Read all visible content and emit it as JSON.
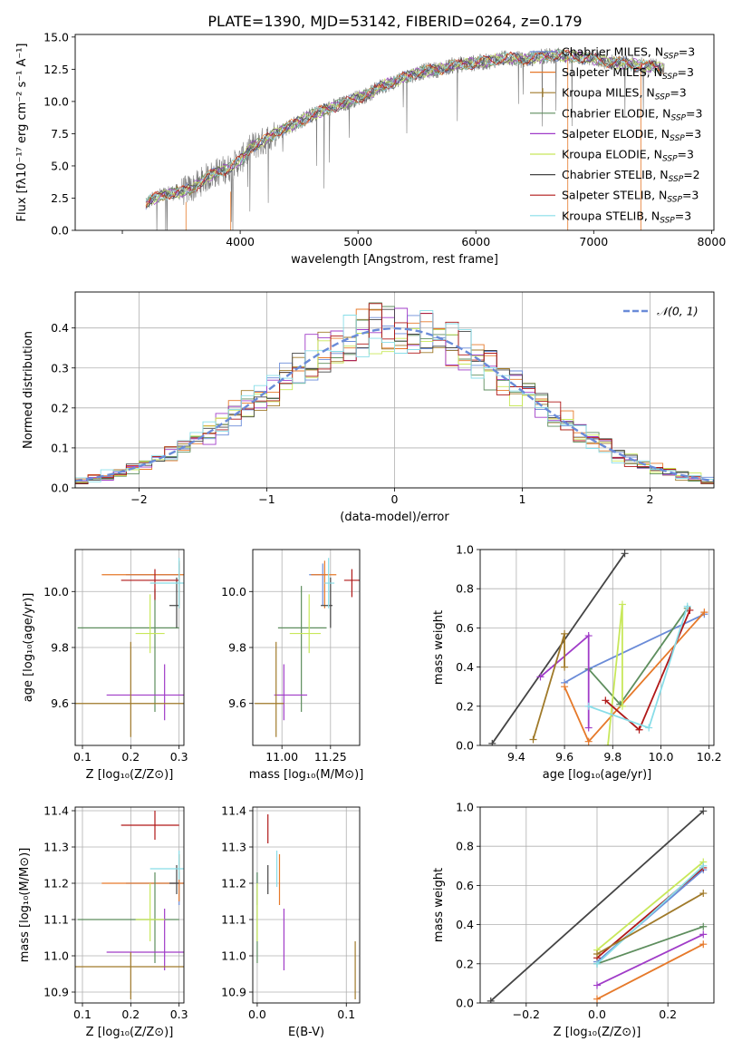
{
  "figure": {
    "title": "PLATE=1390, MJD=53142, FIBERID=0264, z=0.179"
  },
  "models": [
    {
      "name": "Chabrier MILES",
      "nssp": "3",
      "color": "#6a8bd8",
      "marker": "none"
    },
    {
      "name": "Salpeter MILES",
      "nssp": "3",
      "color": "#e6792a",
      "marker": "none"
    },
    {
      "name": "Kroupa MILES",
      "nssp": "3",
      "color": "#a07a2a",
      "marker": "plus"
    },
    {
      "name": "Chabrier ELODIE",
      "nssp": "3",
      "color": "#5e8e5e",
      "marker": "none"
    },
    {
      "name": "Salpeter ELODIE",
      "nssp": "3",
      "color": "#a03cc8",
      "marker": "none"
    },
    {
      "name": "Kroupa ELODIE",
      "nssp": "3",
      "color": "#c8e85a",
      "marker": "none"
    },
    {
      "name": "Chabrier STELIB",
      "nssp": "2",
      "color": "#444444",
      "marker": "none"
    },
    {
      "name": "Salpeter STELIB",
      "nssp": "3",
      "color": "#b01818",
      "marker": "none"
    },
    {
      "name": "Kroupa STELIB",
      "nssp": "3",
      "color": "#88dde8",
      "marker": "none"
    }
  ],
  "legend_suffix": {
    "prefix": "N",
    "sub": "SSP",
    "eq": "="
  },
  "chart_data": [
    {
      "id": "spectrum",
      "type": "line",
      "xlabel": "wavelength [Angstrom, rest frame]",
      "ylabel": "Flux [fλ10⁻¹⁷ erg cm⁻² s⁻¹ A⁻¹]",
      "xlim": [
        2600,
        8020
      ],
      "ylim": [
        0,
        15.2
      ],
      "xticks": [
        3000,
        4000,
        5000,
        6000,
        7000,
        8000
      ],
      "xtick_labels": [
        "",
        "4000",
        "5000",
        "6000",
        "7000",
        "8000"
      ],
      "yticks": [
        0,
        2.5,
        5,
        7.5,
        10,
        12.5,
        15
      ],
      "ytick_labels": [
        "0.0",
        "2.5",
        "5.0",
        "7.5",
        "10.0",
        "12.5",
        "15.0"
      ],
      "grid": false,
      "legend": "upper right",
      "x": [
        3200,
        3300,
        3400,
        3500,
        3600,
        3700,
        3800,
        3900,
        4000,
        4100,
        4200,
        4300,
        4400,
        4500,
        4600,
        4700,
        4800,
        4900,
        5000,
        5100,
        5200,
        5300,
        5400,
        5500,
        5600,
        5700,
        5800,
        5900,
        6000,
        6100,
        6200,
        6300,
        6400,
        6500,
        6600,
        6700,
        6800,
        6900,
        7000,
        7100,
        7200,
        7300,
        7400,
        7500,
        7600
      ],
      "y": [
        2.1,
        2.6,
        2.9,
        3.0,
        3.3,
        4.0,
        4.5,
        4.8,
        5.4,
        6.5,
        6.9,
        7.6,
        8.0,
        8.4,
        8.9,
        9.3,
        9.6,
        9.9,
        10.3,
        10.6,
        11.2,
        11.5,
        11.9,
        12.2,
        12.4,
        12.5,
        12.8,
        12.9,
        13.0,
        13.1,
        13.3,
        13.4,
        13.2,
        13.4,
        13.5,
        13.6,
        13.5,
        13.4,
        13.3,
        13.1,
        13.0,
        12.9,
        12.8,
        12.7,
        12.6
      ]
    },
    {
      "id": "residuals",
      "type": "line",
      "xlabel": "(data-model)/error",
      "ylabel": "Normed distribution",
      "xlim": [
        -2.5,
        2.5
      ],
      "ylim": [
        0,
        0.49
      ],
      "xticks": [
        -2,
        -1,
        0,
        1,
        2
      ],
      "xtick_labels": [
        "−2",
        "−1",
        "0",
        "1",
        "2"
      ],
      "yticks": [
        0,
        0.1,
        0.2,
        0.3,
        0.4
      ],
      "ytick_labels": [
        "0.0",
        "0.1",
        "0.2",
        "0.3",
        "0.4"
      ],
      "grid": true,
      "legend": "upper right",
      "legend_label": "𝒩(0, 1)",
      "curve": "normal pdf, mean 0, sigma 1",
      "bin_width": 0.1
    },
    {
      "id": "age-vs-Z",
      "type": "scatter",
      "xlabel": "Z [log₁₀(Z/Z⊙)]",
      "ylabel": "age  [log₁₀(age/yr)]",
      "xlim": [
        0.085,
        0.31
      ],
      "ylim": [
        9.45,
        10.15
      ],
      "xticks": [
        0.1,
        0.2,
        0.3
      ],
      "xtick_labels": [
        "0.1",
        "0.2",
        "0.3"
      ],
      "yticks": [
        9.6,
        9.8,
        10.0
      ],
      "ytick_labels": [
        "9.6",
        "9.8",
        "10.0"
      ],
      "grid": true,
      "points": [
        {
          "model": 0,
          "x": 0.3,
          "y": 10.06,
          "xlo": 0.19,
          "xhi": 0.3,
          "ylo": 9.95,
          "yhi": 10.1
        },
        {
          "model": 1,
          "x": 0.3,
          "y": 10.06,
          "xlo": 0.14,
          "xhi": 0.31,
          "ylo": 9.94,
          "yhi": 10.11
        },
        {
          "model": 3,
          "x": 0.25,
          "y": 9.87,
          "xlo": 0.09,
          "xhi": 0.3,
          "ylo": 9.57,
          "yhi": 10.01
        },
        {
          "model": 4,
          "x": 0.27,
          "y": 9.63,
          "xlo": 0.15,
          "xhi": 0.31,
          "ylo": 9.54,
          "yhi": 9.74
        },
        {
          "model": 5,
          "x": 0.24,
          "y": 9.85,
          "xlo": 0.21,
          "xhi": 0.27,
          "ylo": 9.78,
          "yhi": 9.99
        },
        {
          "model": 6,
          "x": 0.295,
          "y": 9.95,
          "xlo": 0.28,
          "xhi": 0.3,
          "ylo": 9.87,
          "yhi": 10.05
        },
        {
          "model": 7,
          "x": 0.25,
          "y": 10.04,
          "xlo": 0.18,
          "xhi": 0.3,
          "ylo": 9.97,
          "yhi": 10.08
        },
        {
          "model": 8,
          "x": 0.3,
          "y": 10.03,
          "xlo": 0.24,
          "xhi": 0.31,
          "ylo": 9.94,
          "yhi": 10.12
        },
        {
          "model": 2,
          "x": 0.2,
          "y": 9.6,
          "xlo": 0.085,
          "xhi": 0.31,
          "ylo": 9.48,
          "yhi": 9.82
        }
      ]
    },
    {
      "id": "age-vs-mass",
      "type": "scatter",
      "xlabel": "mass [log₁₀(M/M⊙)]",
      "ylabel": "",
      "xlim": [
        10.85,
        11.4
      ],
      "ylim": [
        9.45,
        10.15
      ],
      "xticks": [
        11.0,
        11.25
      ],
      "xtick_labels": [
        "11.00",
        "11.25"
      ],
      "yticks": [
        9.6,
        9.8,
        10.0
      ],
      "ytick_labels": [
        "9.6",
        "9.8",
        "10.0"
      ],
      "grid": true,
      "points": [
        {
          "model": 0,
          "x": 11.21,
          "y": 10.06,
          "xlo": 11.14,
          "xhi": 11.23,
          "ylo": 9.95,
          "yhi": 10.1
        },
        {
          "model": 1,
          "x": 11.22,
          "y": 10.06,
          "xlo": 11.15,
          "xhi": 11.28,
          "ylo": 9.94,
          "yhi": 10.11
        },
        {
          "model": 3,
          "x": 11.1,
          "y": 9.87,
          "xlo": 10.98,
          "xhi": 11.23,
          "ylo": 9.57,
          "yhi": 10.02
        },
        {
          "model": 4,
          "x": 11.01,
          "y": 9.63,
          "xlo": 10.96,
          "xhi": 11.13,
          "ylo": 9.54,
          "yhi": 9.74
        },
        {
          "model": 5,
          "x": 11.14,
          "y": 9.85,
          "xlo": 11.04,
          "xhi": 11.2,
          "ylo": 9.78,
          "yhi": 9.99
        },
        {
          "model": 6,
          "x": 11.25,
          "y": 9.95,
          "xlo": 11.2,
          "xhi": 11.26,
          "ylo": 9.87,
          "yhi": 10.05
        },
        {
          "model": 7,
          "x": 11.36,
          "y": 10.04,
          "xlo": 11.32,
          "xhi": 11.4,
          "ylo": 9.98,
          "yhi": 10.08
        },
        {
          "model": 8,
          "x": 11.24,
          "y": 10.03,
          "xlo": 11.22,
          "xhi": 11.27,
          "ylo": 9.94,
          "yhi": 10.12
        },
        {
          "model": 2,
          "x": 10.97,
          "y": 9.6,
          "xlo": 10.86,
          "xhi": 11.01,
          "ylo": 9.48,
          "yhi": 9.82
        }
      ]
    },
    {
      "id": "weight-vs-age",
      "type": "line",
      "xlabel": "age  [log₁₀(age/yr)]",
      "ylabel": "mass weight",
      "xlim": [
        9.25,
        10.22
      ],
      "ylim": [
        0,
        1.0
      ],
      "xticks": [
        9.4,
        9.6,
        9.8,
        10.0,
        10.2
      ],
      "xtick_labels": [
        "9.4",
        "9.6",
        "9.8",
        "10.0",
        "10.2"
      ],
      "yticks": [
        0,
        0.2,
        0.4,
        0.6,
        0.8,
        1.0
      ],
      "ytick_labels": [
        "0.0",
        "0.2",
        "0.4",
        "0.6",
        "0.8",
        "1.0"
      ],
      "grid": true,
      "series": [
        {
          "model": 6,
          "x": [
            9.3,
            9.85
          ],
          "y": [
            0.01,
            0.98
          ]
        },
        {
          "model": 0,
          "x": [
            9.6,
            9.7,
            10.18
          ],
          "y": [
            0.32,
            0.39,
            0.67
          ]
        },
        {
          "model": 1,
          "x": [
            9.6,
            9.7,
            10.18
          ],
          "y": [
            0.3,
            0.02,
            0.68
          ]
        },
        {
          "model": 3,
          "x": [
            9.7,
            9.83,
            10.11
          ],
          "y": [
            0.39,
            0.21,
            0.7
          ]
        },
        {
          "model": 4,
          "x": [
            9.5,
            9.7,
            9.7
          ],
          "y": [
            0.35,
            0.56,
            0.09
          ]
        },
        {
          "model": 5,
          "x": [
            9.78,
            9.84,
            9.84
          ],
          "y": [
            0.0,
            0.72,
            0.2
          ]
        },
        {
          "model": 7,
          "x": [
            9.77,
            9.91,
            10.12
          ],
          "y": [
            0.23,
            0.08,
            0.69
          ]
        },
        {
          "model": 8,
          "x": [
            9.7,
            9.95,
            10.11
          ],
          "y": [
            0.2,
            0.09,
            0.71
          ]
        },
        {
          "model": 2,
          "x": [
            9.47,
            9.6,
            9.6
          ],
          "y": [
            0.03,
            0.57,
            0.4
          ]
        }
      ]
    },
    {
      "id": "mass-vs-Z",
      "type": "scatter",
      "xlabel": "Z [log₁₀(Z/Z⊙)]",
      "ylabel": "mass [log₁₀(M/M⊙)]",
      "xlim": [
        0.085,
        0.31
      ],
      "ylim": [
        10.87,
        11.41
      ],
      "xticks": [
        0.1,
        0.2,
        0.3
      ],
      "xtick_labels": [
        "0.1",
        "0.2",
        "0.3"
      ],
      "yticks": [
        10.9,
        11.0,
        11.1,
        11.2,
        11.3,
        11.4
      ],
      "ytick_labels": [
        "10.9",
        "11.0",
        "11.1",
        "11.2",
        "11.3",
        "11.4"
      ],
      "grid": true,
      "points": [
        {
          "model": 0,
          "x": 0.3,
          "y": 11.2,
          "xlo": 0.19,
          "xhi": 0.31,
          "ylo": 11.14,
          "yhi": 11.23
        },
        {
          "model": 1,
          "x": 0.3,
          "y": 11.2,
          "xlo": 0.14,
          "xhi": 0.31,
          "ylo": 11.15,
          "yhi": 11.28
        },
        {
          "model": 3,
          "x": 0.25,
          "y": 11.1,
          "xlo": 0.09,
          "xhi": 0.3,
          "ylo": 10.98,
          "yhi": 11.23
        },
        {
          "model": 4,
          "x": 0.27,
          "y": 11.01,
          "xlo": 0.15,
          "xhi": 0.31,
          "ylo": 10.96,
          "yhi": 11.13
        },
        {
          "model": 5,
          "x": 0.24,
          "y": 11.1,
          "xlo": 0.21,
          "xhi": 0.27,
          "ylo": 11.04,
          "yhi": 11.2
        },
        {
          "model": 6,
          "x": 0.295,
          "y": 11.2,
          "xlo": 0.28,
          "xhi": 0.3,
          "ylo": 11.17,
          "yhi": 11.25
        },
        {
          "model": 7,
          "x": 0.25,
          "y": 11.36,
          "xlo": 0.18,
          "xhi": 0.3,
          "ylo": 11.32,
          "yhi": 11.4
        },
        {
          "model": 8,
          "x": 0.3,
          "y": 11.24,
          "xlo": 0.24,
          "xhi": 0.31,
          "ylo": 11.21,
          "yhi": 11.29
        },
        {
          "model": 2,
          "x": 0.2,
          "y": 10.97,
          "xlo": 0.085,
          "xhi": 0.31,
          "ylo": 10.88,
          "yhi": 11.01
        }
      ]
    },
    {
      "id": "mass-vs-ebv",
      "type": "scatter",
      "xlabel": "E(B-V)",
      "ylabel": "",
      "xlim": [
        -0.005,
        0.115
      ],
      "ylim": [
        10.87,
        11.41
      ],
      "xticks": [
        0.0,
        0.1
      ],
      "xtick_labels": [
        "0.0",
        "0.1"
      ],
      "yticks": [
        10.9,
        11.0,
        11.1,
        11.2,
        11.3,
        11.4
      ],
      "ytick_labels": [
        "10.9",
        "11.0",
        "11.1",
        "11.2",
        "11.3",
        "11.4"
      ],
      "grid": true,
      "points": [
        {
          "model": 0,
          "x": 0.0,
          "y": 11.2,
          "ylo": 11.14,
          "yhi": 11.23
        },
        {
          "model": 1,
          "x": 0.025,
          "y": 11.21,
          "ylo": 11.14,
          "yhi": 11.28
        },
        {
          "model": 3,
          "x": 0.0,
          "y": 11.1,
          "ylo": 10.98,
          "yhi": 11.23
        },
        {
          "model": 4,
          "x": 0.03,
          "y": 11.04,
          "ylo": 10.96,
          "yhi": 11.13
        },
        {
          "model": 5,
          "x": 0.0,
          "y": 11.1,
          "ylo": 11.04,
          "yhi": 11.2
        },
        {
          "model": 6,
          "x": 0.012,
          "y": 11.2,
          "ylo": 11.17,
          "yhi": 11.25
        },
        {
          "model": 7,
          "x": 0.012,
          "y": 11.35,
          "ylo": 11.31,
          "yhi": 11.39
        },
        {
          "model": 8,
          "x": 0.022,
          "y": 11.24,
          "ylo": 11.19,
          "yhi": 11.29
        },
        {
          "model": 2,
          "x": 0.11,
          "y": 10.97,
          "ylo": 10.88,
          "yhi": 11.04
        }
      ]
    },
    {
      "id": "weight-vs-Z",
      "type": "line",
      "xlabel": "Z [log₁₀(Z/Z⊙)]",
      "ylabel": "mass weight",
      "xlim": [
        -0.33,
        0.33
      ],
      "ylim": [
        0,
        1.0
      ],
      "xticks": [
        -0.2,
        0.0,
        0.2
      ],
      "xtick_labels": [
        "−0.2",
        "0.0",
        "0.2"
      ],
      "yticks": [
        0,
        0.2,
        0.4,
        0.6,
        0.8,
        1.0
      ],
      "ytick_labels": [
        "0.0",
        "0.2",
        "0.4",
        "0.6",
        "0.8",
        "1.0"
      ],
      "grid": true,
      "series": [
        {
          "model": 6,
          "x": [
            -0.3,
            0.3
          ],
          "y": [
            0.01,
            0.98
          ]
        },
        {
          "model": 0,
          "x": [
            0.0,
            0.3
          ],
          "y": [
            0.21,
            0.68
          ]
        },
        {
          "model": 1,
          "x": [
            0.0,
            0.3
          ],
          "y": [
            0.02,
            0.3
          ]
        },
        {
          "model": 3,
          "x": [
            0.0,
            0.3
          ],
          "y": [
            0.2,
            0.39
          ]
        },
        {
          "model": 4,
          "x": [
            0.0,
            0.3
          ],
          "y": [
            0.09,
            0.35
          ]
        },
        {
          "model": 5,
          "x": [
            0.0,
            0.3
          ],
          "y": [
            0.27,
            0.72
          ]
        },
        {
          "model": 7,
          "x": [
            0.0,
            0.3
          ],
          "y": [
            0.23,
            0.69
          ]
        },
        {
          "model": 8,
          "x": [
            0.0,
            0.3
          ],
          "y": [
            0.2,
            0.7
          ]
        },
        {
          "model": 2,
          "x": [
            0.0,
            0.3
          ],
          "y": [
            0.25,
            0.56
          ]
        }
      ]
    }
  ]
}
